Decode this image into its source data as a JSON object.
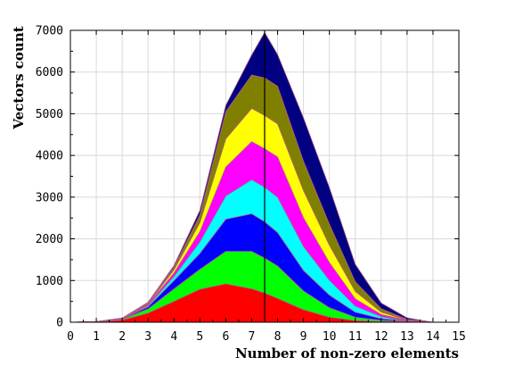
{
  "chart_data": {
    "type": "area",
    "stacked": true,
    "xlabel": "Number of non-zero elements",
    "ylabel": "Vectors count",
    "xlim": [
      0,
      15
    ],
    "ylim": [
      0,
      7000
    ],
    "xticks": [
      "0",
      "1",
      "2",
      "3",
      "4",
      "5",
      "6",
      "7",
      "8",
      "9",
      "10",
      "11",
      "12",
      "13",
      "14",
      "15"
    ],
    "yticks": [
      "0",
      "1000",
      "2000",
      "3000",
      "4000",
      "5000",
      "6000",
      "7000"
    ],
    "grid": true,
    "vertical_line_x": 7.5,
    "x": [
      0,
      1,
      2,
      3,
      4,
      5,
      6,
      7,
      7.5,
      8,
      9,
      10,
      11,
      12,
      13,
      14
    ],
    "series": [
      {
        "color": "#ff0000",
        "values": [
          0,
          5,
          50,
          220,
          500,
          790,
          920,
          800,
          700,
          570,
          300,
          120,
          40,
          15,
          5,
          0
        ]
      },
      {
        "color": "#00ff00",
        "values": [
          0,
          4,
          20,
          100,
          300,
          480,
          780,
          900,
          840,
          780,
          450,
          230,
          80,
          30,
          10,
          0
        ]
      },
      {
        "color": "#0000ff",
        "values": [
          0,
          2,
          10,
          50,
          200,
          380,
          770,
          900,
          870,
          800,
          490,
          300,
          120,
          40,
          10,
          0
        ]
      },
      {
        "color": "#00ffff",
        "values": [
          0,
          1,
          6,
          30,
          100,
          280,
          560,
          820,
          830,
          850,
          580,
          360,
          150,
          50,
          10,
          0
        ]
      },
      {
        "color": "#ff00ff",
        "values": [
          0,
          1,
          4,
          20,
          80,
          240,
          690,
          910,
          920,
          960,
          680,
          420,
          170,
          50,
          10,
          0
        ]
      },
      {
        "color": "#ffff00",
        "values": [
          0,
          1,
          4,
          20,
          80,
          220,
          680,
          800,
          800,
          800,
          660,
          420,
          180,
          60,
          10,
          0
        ]
      },
      {
        "color": "#808000",
        "values": [
          0,
          1,
          3,
          20,
          60,
          180,
          650,
          800,
          900,
          900,
          700,
          500,
          230,
          80,
          15,
          0
        ]
      },
      {
        "color": "#000080",
        "values": [
          0,
          1,
          3,
          20,
          40,
          110,
          150,
          480,
          1090,
          760,
          1040,
          880,
          420,
          135,
          35,
          0
        ]
      }
    ]
  }
}
